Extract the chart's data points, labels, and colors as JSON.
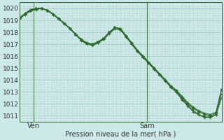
{
  "bg_color": "#cce8e8",
  "grid_major_color": "#adc8c8",
  "grid_minor_color": "#c0d8d8",
  "line_color": "#2d6a2d",
  "ylabel_ticks": [
    1011,
    1012,
    1013,
    1014,
    1015,
    1016,
    1017,
    1018,
    1019,
    1020
  ],
  "ymin": 1010.5,
  "ymax": 1020.5,
  "xlabel": "Pression niveau de la mer( hPa )",
  "xtick_labels": [
    "Ven",
    "Sam"
  ],
  "xtick_positions": [
    0.07,
    0.63
  ],
  "vline_x": [
    0.07,
    0.63
  ],
  "num_points": 37,
  "series1": [
    1019.2,
    1019.6,
    1019.9,
    1020.0,
    1020.0,
    1019.8,
    1019.5,
    1019.1,
    1018.7,
    1018.3,
    1017.8,
    1017.4,
    1017.1,
    1017.0,
    1017.2,
    1017.5,
    1018.0,
    1018.4,
    1018.3,
    1017.7,
    1017.1,
    1016.5,
    1016.0,
    1015.5,
    1015.0,
    1014.5,
    1014.0,
    1013.5,
    1013.1,
    1012.6,
    1012.1,
    1011.7,
    1011.4,
    1011.2,
    1011.1,
    1011.3,
    1013.2
  ],
  "series2": [
    1019.1,
    1019.5,
    1019.8,
    1019.9,
    1020.0,
    1019.8,
    1019.5,
    1019.1,
    1018.7,
    1018.3,
    1017.8,
    1017.3,
    1017.0,
    1016.9,
    1017.1,
    1017.4,
    1017.9,
    1018.3,
    1018.2,
    1017.6,
    1017.0,
    1016.4,
    1015.9,
    1015.4,
    1014.9,
    1014.4,
    1013.9,
    1013.4,
    1013.0,
    1012.4,
    1011.9,
    1011.4,
    1011.1,
    1010.9,
    1010.9,
    1011.1,
    1012.8
  ],
  "series3": [
    1019.15,
    1019.5,
    1019.8,
    1019.95,
    1020.0,
    1019.8,
    1019.5,
    1019.1,
    1018.7,
    1018.3,
    1017.8,
    1017.3,
    1017.05,
    1016.95,
    1017.1,
    1017.4,
    1017.9,
    1018.3,
    1018.2,
    1017.6,
    1017.0,
    1016.4,
    1015.9,
    1015.4,
    1014.9,
    1014.4,
    1013.9,
    1013.35,
    1012.95,
    1012.3,
    1011.8,
    1011.3,
    1011.05,
    1010.85,
    1010.85,
    1011.05,
    1012.5
  ],
  "series4_tri": [
    1019.2,
    1019.55,
    1019.85,
    1020.0,
    1020.0,
    1019.85,
    1019.55,
    1019.15,
    1018.75,
    1018.35,
    1017.85,
    1017.4,
    1017.1,
    1017.0,
    1017.2,
    1017.5,
    1018.0,
    1018.4,
    1018.3,
    1017.7,
    1017.1,
    1016.5,
    1016.0,
    1015.5,
    1015.0,
    1014.5,
    1014.0,
    1013.5,
    1013.1,
    1012.5,
    1012.0,
    1011.6,
    1011.3,
    1011.1,
    1011.0,
    1011.2,
    1013.2
  ]
}
